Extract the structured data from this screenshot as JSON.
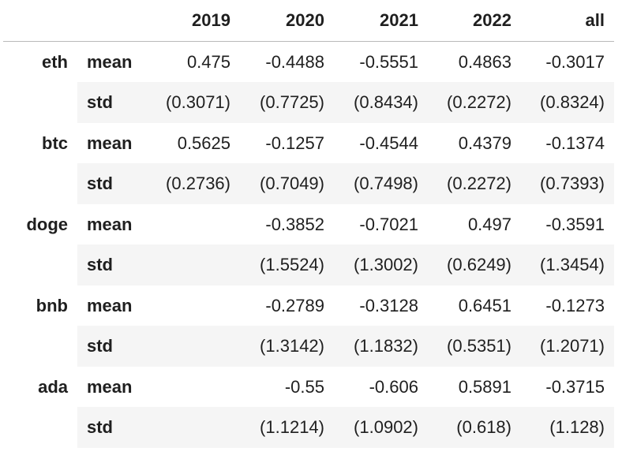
{
  "columns": [
    "2019",
    "2020",
    "2021",
    "2022",
    "all"
  ],
  "groups": [
    {
      "name": "eth",
      "rows": [
        {
          "stat": "mean",
          "values": [
            "0.475",
            "-0.4488",
            "-0.5551",
            "0.4863",
            "-0.3017"
          ]
        },
        {
          "stat": "std",
          "values": [
            "(0.3071)",
            "(0.7725)",
            "(0.8434)",
            "(0.2272)",
            "(0.8324)"
          ]
        }
      ]
    },
    {
      "name": "btc",
      "rows": [
        {
          "stat": "mean",
          "values": [
            "0.5625",
            "-0.1257",
            "-0.4544",
            "0.4379",
            "-0.1374"
          ]
        },
        {
          "stat": "std",
          "values": [
            "(0.2736)",
            "(0.7049)",
            "(0.7498)",
            "(0.2272)",
            "(0.7393)"
          ]
        }
      ]
    },
    {
      "name": "doge",
      "rows": [
        {
          "stat": "mean",
          "values": [
            "",
            "-0.3852",
            "-0.7021",
            "0.497",
            "-0.3591"
          ]
        },
        {
          "stat": "std",
          "values": [
            "",
            "(1.5524)",
            "(1.3002)",
            "(0.6249)",
            "(1.3454)"
          ]
        }
      ]
    },
    {
      "name": "bnb",
      "rows": [
        {
          "stat": "mean",
          "values": [
            "",
            "-0.2789",
            "-0.3128",
            "0.6451",
            "-0.1273"
          ]
        },
        {
          "stat": "std",
          "values": [
            "",
            "(1.3142)",
            "(1.1832)",
            "(0.5351)",
            "(1.2071)"
          ]
        }
      ]
    },
    {
      "name": "ada",
      "rows": [
        {
          "stat": "mean",
          "values": [
            "",
            "-0.55",
            "-0.606",
            "0.5891",
            "-0.3715"
          ]
        },
        {
          "stat": "std",
          "values": [
            "",
            "(1.1214)",
            "(1.0902)",
            "(0.618)",
            "(1.128)"
          ]
        }
      ]
    }
  ]
}
